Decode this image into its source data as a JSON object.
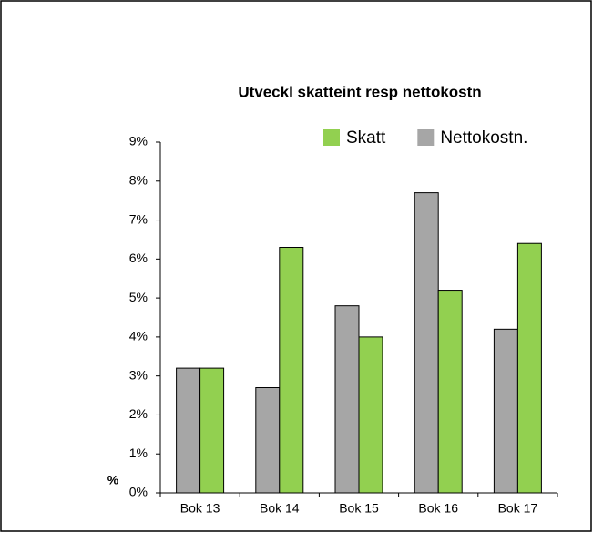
{
  "chart_data": {
    "type": "bar",
    "title": "Utveckl skatteint resp nettokostn",
    "y_label": "%",
    "categories": [
      "Bok 13",
      "Bok 14",
      "Bok 15",
      "Bok 16",
      "Bok 17"
    ],
    "series": [
      {
        "name": "Nettokostn.",
        "color": "#a6a6a6",
        "values": [
          3.2,
          2.7,
          4.8,
          7.7,
          4.2
        ]
      },
      {
        "name": "Skatt",
        "color": "#92d050",
        "values": [
          3.2,
          6.3,
          4.0,
          5.2,
          6.4
        ]
      }
    ],
    "ylim": [
      0,
      9
    ],
    "yticks": [
      {
        "value": 0,
        "label": "0%"
      },
      {
        "value": 1,
        "label": "1%"
      },
      {
        "value": 2,
        "label": "2%"
      },
      {
        "value": 3,
        "label": "3%"
      },
      {
        "value": 4,
        "label": "4%"
      },
      {
        "value": 5,
        "label": "5%"
      },
      {
        "value": 6,
        "label": "6%"
      },
      {
        "value": 7,
        "label": "7%"
      },
      {
        "value": 8,
        "label": "8%"
      },
      {
        "value": 9,
        "label": "9%"
      }
    ],
    "grid": false,
    "legend": "top-right"
  }
}
